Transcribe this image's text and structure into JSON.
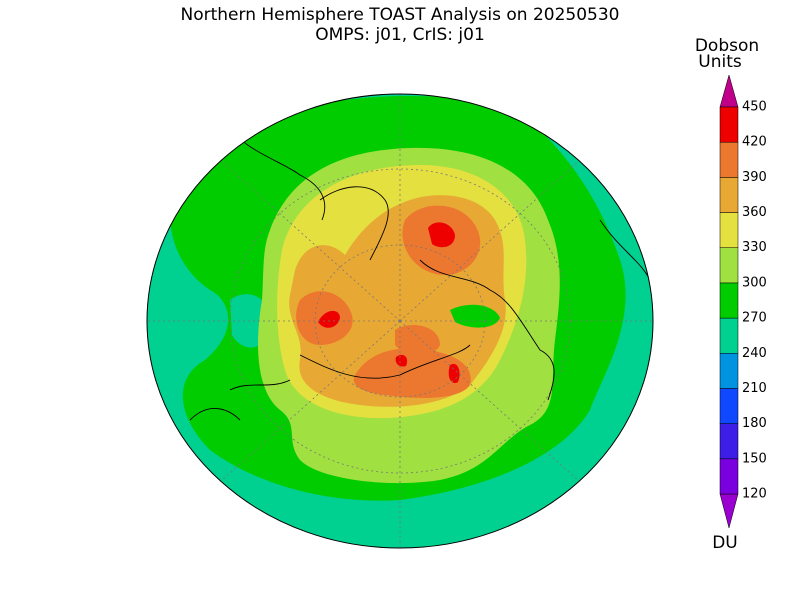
{
  "header": {
    "title": "Northern Hemisphere TOAST Analysis on 20250530",
    "subtitle": "OMPS: j01, CrIS: j01"
  },
  "colorbar": {
    "title_lines": [
      "Dobson",
      "Units"
    ],
    "unit": "DU",
    "levels": [
      120,
      150,
      180,
      210,
      240,
      270,
      300,
      330,
      360,
      390,
      420,
      450
    ],
    "colors": [
      "#9a00d0",
      "#7a00e0",
      "#3c1ee6",
      "#1048ff",
      "#0094e0",
      "#00d090",
      "#00cc00",
      "#a0e040",
      "#e4e040",
      "#e8a834",
      "#ec7830",
      "#ee0000",
      "#c0008a"
    ]
  }
}
